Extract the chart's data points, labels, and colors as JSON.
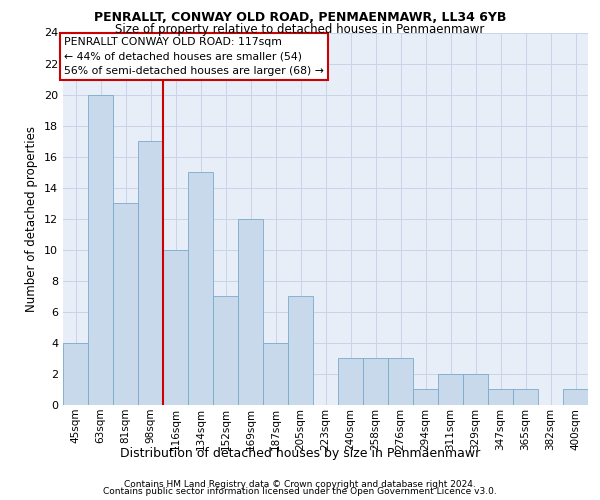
{
  "title1": "PENRALLT, CONWAY OLD ROAD, PENMAENMAWR, LL34 6YB",
  "title2": "Size of property relative to detached houses in Penmaenmawr",
  "xlabel": "Distribution of detached houses by size in Penmaenmawr",
  "ylabel": "Number of detached properties",
  "categories": [
    "45sqm",
    "63sqm",
    "81sqm",
    "98sqm",
    "116sqm",
    "134sqm",
    "152sqm",
    "169sqm",
    "187sqm",
    "205sqm",
    "223sqm",
    "240sqm",
    "258sqm",
    "276sqm",
    "294sqm",
    "311sqm",
    "329sqm",
    "347sqm",
    "365sqm",
    "382sqm",
    "400sqm"
  ],
  "values": [
    4,
    20,
    13,
    17,
    10,
    15,
    7,
    12,
    4,
    7,
    0,
    3,
    3,
    3,
    1,
    2,
    2,
    1,
    1,
    0,
    1
  ],
  "bar_color": "#c9d9ec",
  "bar_edge_color": "#7aaaca",
  "grid_color": "#c8d4e8",
  "background_color": "#e8eef8",
  "red_line_x": 3.5,
  "annotation_title": "PENRALLT CONWAY OLD ROAD: 117sqm",
  "annotation_line1": "← 44% of detached houses are smaller (54)",
  "annotation_line2": "56% of semi-detached houses are larger (68) →",
  "annotation_box_color": "#ffffff",
  "annotation_border_color": "#cc0000",
  "red_line_color": "#cc0000",
  "ylim": [
    0,
    24
  ],
  "yticks": [
    0,
    2,
    4,
    6,
    8,
    10,
    12,
    14,
    16,
    18,
    20,
    22,
    24
  ],
  "footer1": "Contains HM Land Registry data © Crown copyright and database right 2024.",
  "footer2": "Contains public sector information licensed under the Open Government Licence v3.0."
}
